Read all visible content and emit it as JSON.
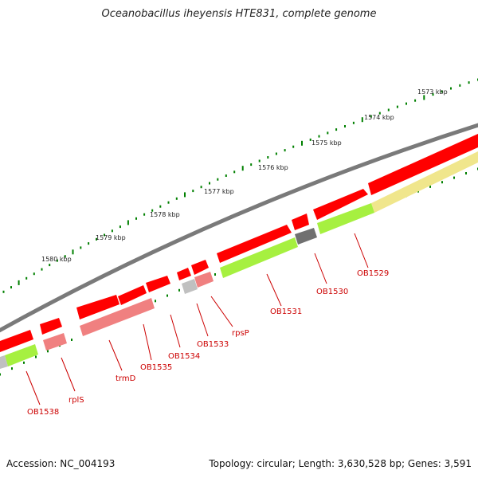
{
  "title": "Oceanobacillus iheyensis HTE831, complete genome",
  "footer": {
    "accession": "Accession: NC_004193",
    "summary": "Topology: circular; Length: 3,630,528 bp; Genes: 3,591"
  },
  "colors": {
    "backbone": "#808080",
    "forward_gene": "#ff0000",
    "reverse_gene": "#f08080",
    "cds_green": "#a6f040",
    "cds_yellow": "#f0e68c",
    "cds_gray": "#c0c0c0",
    "cds_dark": "#707070",
    "tick": "#008000",
    "label": "#cc0000"
  },
  "ticks": [
    "1573 kbp",
    "1574 kbp",
    "1575 kbp",
    "1576 kbp",
    "1577 kbp",
    "1578 kbp",
    "1579 kbp",
    "1580 kbp"
  ],
  "gene_labels": [
    "OB1529",
    "OB1530",
    "OB1531",
    "rpsP",
    "OB1533",
    "OB1534",
    "OB1535",
    "trmD",
    "rplS",
    "OB1538"
  ]
}
